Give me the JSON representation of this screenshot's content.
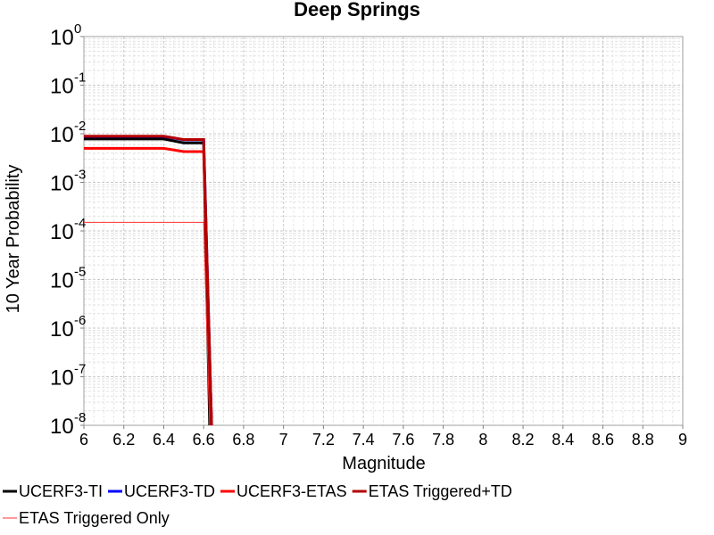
{
  "chart_data": {
    "type": "line",
    "title": "Deep Springs",
    "xlabel": "Magnitude",
    "ylabel": "10 Year Probability",
    "xlim": [
      6,
      9
    ],
    "ylim": [
      1e-08,
      1
    ],
    "yscale": "log",
    "grid": true,
    "legend_position": "bottom",
    "x_ticks": [
      "6",
      "6.2",
      "6.4",
      "6.6",
      "6.8",
      "7",
      "7.2",
      "7.4",
      "7.6",
      "7.8",
      "8",
      "8.2",
      "8.4",
      "8.6",
      "8.8",
      "9"
    ],
    "y_ticks": [
      {
        "base": "10",
        "exp": "0"
      },
      {
        "base": "10",
        "exp": "-1"
      },
      {
        "base": "10",
        "exp": "-2"
      },
      {
        "base": "10",
        "exp": "-3"
      },
      {
        "base": "10",
        "exp": "-4"
      },
      {
        "base": "10",
        "exp": "-5"
      },
      {
        "base": "10",
        "exp": "-6"
      },
      {
        "base": "10",
        "exp": "-7"
      },
      {
        "base": "10",
        "exp": "-8"
      }
    ],
    "series": [
      {
        "name": "UCERF3-TI",
        "color": "#000000",
        "width": 3,
        "points": [
          [
            6.0,
            0.0078
          ],
          [
            6.4,
            0.0078
          ],
          [
            6.5,
            0.0065
          ],
          [
            6.6,
            0.0065
          ],
          [
            6.63,
            1e-08
          ]
        ]
      },
      {
        "name": "UCERF3-TD",
        "color": "#0000ff",
        "width": 3,
        "points": [
          [
            6.0,
            0.0088
          ],
          [
            6.4,
            0.0088
          ],
          [
            6.5,
            0.0075
          ],
          [
            6.6,
            0.0075
          ],
          [
            6.64,
            1e-08
          ]
        ]
      },
      {
        "name": "UCERF3-ETAS",
        "color": "#ff0000",
        "width": 3,
        "points": [
          [
            6.0,
            0.005
          ],
          [
            6.4,
            0.005
          ],
          [
            6.5,
            0.0043
          ],
          [
            6.6,
            0.0043
          ],
          [
            6.64,
            1e-08
          ]
        ]
      },
      {
        "name": "ETAS Triggered+TD",
        "color": "#b40000",
        "width": 3,
        "points": [
          [
            6.0,
            0.0089
          ],
          [
            6.4,
            0.0089
          ],
          [
            6.5,
            0.0076
          ],
          [
            6.6,
            0.0076
          ],
          [
            6.64,
            1e-08
          ]
        ]
      },
      {
        "name": "ETAS Triggered Only",
        "color": "#ff3030",
        "width": 1,
        "points": [
          [
            6.0,
            0.00015
          ],
          [
            6.6,
            0.00015
          ],
          [
            6.63,
            1e-08
          ]
        ]
      }
    ]
  }
}
